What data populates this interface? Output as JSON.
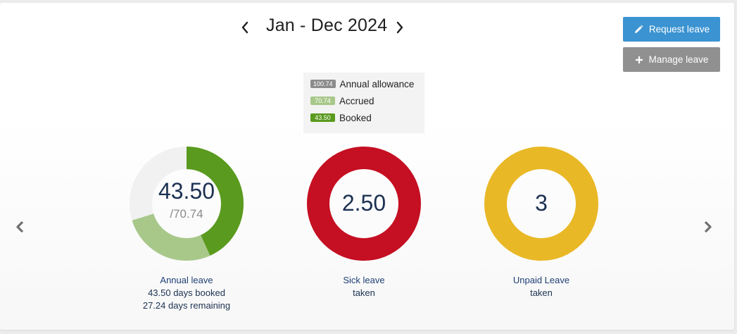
{
  "header": {
    "period_title": "Jan - Dec 2024"
  },
  "actions": {
    "request_leave": "Request leave",
    "manage_leave": "Manage leave"
  },
  "legend": {
    "items": [
      {
        "badge": "100.74",
        "label": "Annual allowance",
        "color": "#8c8c8c"
      },
      {
        "badge": "70.74",
        "label": "Accrued",
        "color": "#a8c88a"
      },
      {
        "badge": "43.50",
        "label": "Booked",
        "color": "#5a9a1e"
      }
    ]
  },
  "cards": [
    {
      "value": "43.50",
      "sub": "/70.74",
      "title": "Annual leave",
      "line1": "43.50 days booked",
      "line2": "27.24 days remaining",
      "booked": 43.5,
      "accrued": 70.74,
      "allowance": 100.74
    },
    {
      "value": "2.50",
      "title": "Sick leave",
      "line1": "taken",
      "color": "#c50f22"
    },
    {
      "value": "3",
      "title": "Unpaid Leave",
      "line1": "taken",
      "color": "#e9b826"
    }
  ],
  "colors": {
    "accent": "#3b93d1",
    "secondary_button": "#909090",
    "booked": "#5a9a1e",
    "accrued": "#a8c88a",
    "remaining_track": "#f1f1f1"
  },
  "icons": {
    "prev_period": "chevron-left-icon",
    "next_period": "chevron-right-icon",
    "request": "pencil-icon",
    "manage": "plus-icon",
    "carousel_prev": "caret-left-icon",
    "carousel_next": "caret-right-icon"
  }
}
